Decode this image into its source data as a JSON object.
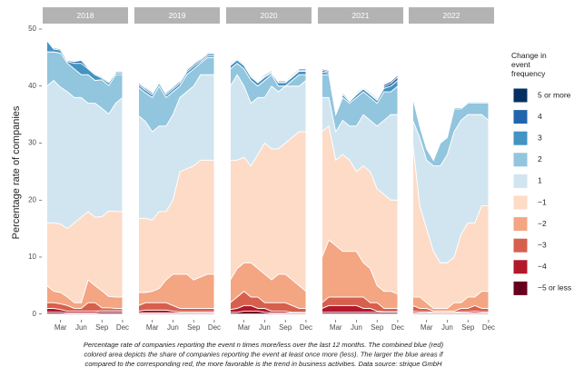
{
  "chart_data": {
    "type": "area",
    "ylabel": "Percentage rate of companies",
    "legend_title": "Change in event frequency",
    "caption": [
      "Percentage rate of companies reporting the event n times more/less over the last 12 months. The combined blue (red)",
      "colored area depicts the share of companies reporting the event at least once more (less). The larger the blue areas if",
      "compared to the corresponding red, the more favorable is the trend in business activities. Data source: strique GmbH"
    ],
    "facets": [
      "2018",
      "2019",
      "2020",
      "2021",
      "2022"
    ],
    "x": [
      1,
      2,
      3,
      4,
      5,
      6,
      7,
      8,
      9,
      10,
      11,
      12
    ],
    "xlim": [
      0.4,
      12.8
    ],
    "xticks": [
      {
        "value": 3,
        "label": "Mar"
      },
      {
        "value": 6,
        "label": "Jun"
      },
      {
        "value": 9,
        "label": "Sep"
      },
      {
        "value": 12,
        "label": "Dec"
      }
    ],
    "ylim": [
      -1,
      50.8
    ],
    "yticks": [
      0,
      10,
      20,
      30,
      40,
      50
    ],
    "series": [
      {
        "name": "−5 or less",
        "color": "#67001f",
        "values": [
          [
            0.3,
            0.3,
            0.3,
            0.2,
            0.2,
            0.2,
            0.2,
            0.2,
            0.3,
            0.3,
            0.3,
            0.3
          ],
          [
            0.2,
            0.2,
            0.2,
            0.2,
            0.2,
            0.2,
            0.2,
            0.2,
            0.2,
            0.2,
            0.2,
            0.2
          ],
          [
            0.3,
            0.3,
            0.5,
            0.5,
            0.5,
            0.3,
            0.2,
            0.2,
            0.2,
            0.2,
            0.2,
            0.2
          ],
          [
            0.3,
            0.3,
            0.3,
            0.3,
            0.3,
            0.3,
            0.3,
            0.3,
            0.3,
            0.3,
            0.3,
            0.3
          ],
          [
            0.2,
            0.2,
            0.2,
            0.2,
            0.2,
            0.2,
            0.2,
            0.2,
            0.2,
            0.2,
            0.2,
            0.2
          ]
        ]
      },
      {
        "name": "−4",
        "color": "#b2182b",
        "values": [
          [
            0.7,
            0.7,
            0.5,
            0.3,
            0.3,
            0.3,
            0.3,
            0.3,
            0.3,
            0.3,
            0.3,
            0.3
          ],
          [
            0.3,
            0.5,
            0.5,
            0.5,
            0.5,
            0.3,
            0.2,
            0.2,
            0.2,
            0.2,
            0.2,
            0.2
          ],
          [
            0.5,
            0.7,
            1,
            1,
            0.5,
            0.7,
            0.3,
            0.3,
            0.3,
            0.1,
            0.1,
            0.1
          ],
          [
            0.7,
            1.2,
            1.2,
            1.2,
            1.2,
            1.2,
            0.7,
            0.7,
            0.2,
            0.1,
            0.1,
            0.1
          ],
          [
            0.3,
            0.2,
            0.2,
            0.1,
            0.1,
            0.1,
            0.1,
            0.2,
            0.2,
            0.3,
            0.2,
            0.2
          ]
        ]
      },
      {
        "name": "−3",
        "color": "#d6604d",
        "values": [
          [
            1,
            1,
            1,
            1,
            0.5,
            0.5,
            1.5,
            1.5,
            0.5,
            0.5,
            0.4,
            0.4
          ],
          [
            1,
            1.3,
            1.3,
            1.3,
            1.3,
            1,
            0.6,
            0.6,
            0.6,
            0.6,
            0.6,
            0.6
          ],
          [
            1.2,
            2,
            2.5,
            1.5,
            2,
            1,
            1.5,
            1.5,
            1.5,
            1.2,
            0.7,
            0.7
          ],
          [
            1,
            1.5,
            1.5,
            1.5,
            1.5,
            1.5,
            2,
            1,
            1.5,
            0.6,
            0.6,
            0.6
          ],
          [
            1,
            0.6,
            0.6,
            0.2,
            0.2,
            0.2,
            0.2,
            0.6,
            0.6,
            1,
            0.6,
            0.6
          ]
        ]
      },
      {
        "name": "−2",
        "color": "#f4a582",
        "values": [
          [
            3,
            2,
            2,
            1.5,
            1,
            1,
            4,
            3,
            3,
            2,
            2,
            2
          ],
          [
            2.3,
            1.8,
            2,
            2.5,
            4,
            5.5,
            6,
            6,
            5,
            5.5,
            6,
            6
          ],
          [
            4,
            5,
            5,
            6,
            5,
            5,
            4,
            5,
            5,
            4.5,
            4,
            3
          ],
          [
            8,
            10,
            9,
            8,
            8,
            8,
            6,
            6,
            3,
            3,
            3,
            2.5
          ],
          [
            1.5,
            2,
            1,
            0.5,
            0.5,
            0.5,
            1.5,
            1,
            2,
            1.5,
            3,
            3
          ]
        ]
      },
      {
        "name": "−1",
        "color": "#fddbc7",
        "values": [
          [
            11,
            12,
            12,
            12,
            14,
            15,
            12,
            12,
            13,
            15,
            15,
            15
          ],
          [
            13,
            13,
            12.5,
            13.5,
            12,
            13,
            18,
            18.5,
            20,
            20.5,
            20,
            20
          ],
          [
            21,
            19,
            18.5,
            17,
            20,
            23,
            23,
            22,
            23,
            25,
            27,
            28
          ],
          [
            22,
            20,
            15,
            17,
            16,
            14,
            17,
            17,
            17,
            17,
            16,
            16.5
          ],
          [
            27,
            16,
            13,
            10,
            8,
            8,
            8,
            12,
            13,
            13,
            15,
            15
          ]
        ]
      },
      {
        "name": "1",
        "color": "#d1e5f0",
        "values": [
          [
            24,
            25,
            24,
            24,
            22,
            21,
            19,
            20,
            19,
            17,
            19,
            20
          ],
          [
            18,
            17,
            15.5,
            15,
            15,
            15,
            13,
            13.5,
            14,
            15,
            15,
            15
          ],
          [
            13,
            15,
            12.5,
            11,
            10,
            8,
            11,
            10,
            10,
            9,
            8,
            9
          ],
          [
            6,
            5,
            5,
            6,
            6,
            8,
            9,
            9,
            11,
            13,
            15,
            15
          ],
          [
            4,
            12,
            12,
            15,
            17,
            19,
            22,
            20,
            19,
            19,
            16,
            15
          ]
        ]
      },
      {
        "name": "2",
        "color": "#92c5de",
        "values": [
          [
            6,
            5,
            6,
            5,
            5,
            4,
            5,
            4,
            5,
            5,
            5,
            4
          ],
          [
            5,
            5,
            6,
            7,
            5,
            4,
            2,
            3,
            3,
            2,
            3,
            3
          ],
          [
            3,
            2,
            3,
            4,
            2,
            3,
            2,
            1,
            0,
            1,
            2,
            1
          ],
          [
            4,
            4,
            3,
            4,
            4,
            5,
            4,
            4,
            4,
            5,
            4,
            5
          ],
          [
            4,
            2,
            2,
            1,
            4,
            3,
            4,
            2,
            2,
            2,
            2,
            3
          ]
        ]
      },
      {
        "name": "3",
        "color": "#4393c3",
        "values": [
          [
            2,
            0.5,
            0.5,
            0.3,
            1,
            2,
            1,
            1,
            0.3,
            0.5,
            0.3,
            0.3
          ],
          [
            0.5,
            0.5,
            0.5,
            0.5,
            0.5,
            0.5,
            0.5,
            0.5,
            0.5,
            0.3,
            0.3,
            0.3
          ],
          [
            0.6,
            0.6,
            0.6,
            0.6,
            0.6,
            0.6,
            0.3,
            0.6,
            0.6,
            0.6,
            0.6,
            0.6
          ],
          [
            0.5,
            0.3,
            0.3,
            0.5,
            0.3,
            0.5,
            0.5,
            0.5,
            0.5,
            0.6,
            1,
            1
          ],
          [
            0.3,
            0.2,
            0.2,
            0.2,
            0.2,
            0.2,
            0.2,
            0.2,
            0.2,
            0.2,
            0.2,
            0.2
          ]
        ]
      },
      {
        "name": "4",
        "color": "#2166ac",
        "values": [
          [
            0.2,
            0.2,
            0.2,
            0.2,
            0.3,
            0.5,
            0.2,
            0.2,
            0.2,
            0.2,
            0.2,
            0.2
          ],
          [
            0.3,
            0.3,
            0.3,
            0.3,
            0.3,
            0.3,
            0.3,
            0.3,
            0.3,
            0.3,
            0.3,
            0.3
          ],
          [
            0.2,
            0.2,
            0.2,
            0.2,
            0.2,
            0.2,
            0.2,
            0.2,
            0.2,
            0.2,
            0.2,
            0.2
          ],
          [
            0.3,
            0.2,
            0.2,
            0.3,
            0.2,
            0.2,
            0.2,
            0.2,
            0.2,
            0.3,
            0.5,
            0.6
          ],
          [
            0.1,
            0.1,
            0.1,
            0.1,
            0.1,
            0.1,
            0.1,
            0.1,
            0.1,
            0.1,
            0.1,
            0.1
          ]
        ]
      },
      {
        "name": "5 or more",
        "color": "#053061",
        "values": [
          [
            0.1,
            0.1,
            0.1,
            0.1,
            0.1,
            0.1,
            0.1,
            0.1,
            0.1,
            0.1,
            0.1,
            0.1
          ],
          [
            0.2,
            0.2,
            0.2,
            0.2,
            0.2,
            0.2,
            0.2,
            0.2,
            0.2,
            0.2,
            0.2,
            0.2
          ],
          [
            0.2,
            0.2,
            0.2,
            0.2,
            0.2,
            0.2,
            0.2,
            0.2,
            0.2,
            0.2,
            0.2,
            0.2
          ],
          [
            0.2,
            0.2,
            0.2,
            0.2,
            0.2,
            0.2,
            0.2,
            0.2,
            0.2,
            0.3,
            0.3,
            0.3
          ],
          [
            0.1,
            0.1,
            0.1,
            0.1,
            0.1,
            0.1,
            0.1,
            0.1,
            0.1,
            0.1,
            0.1,
            0.1
          ]
        ]
      }
    ]
  }
}
